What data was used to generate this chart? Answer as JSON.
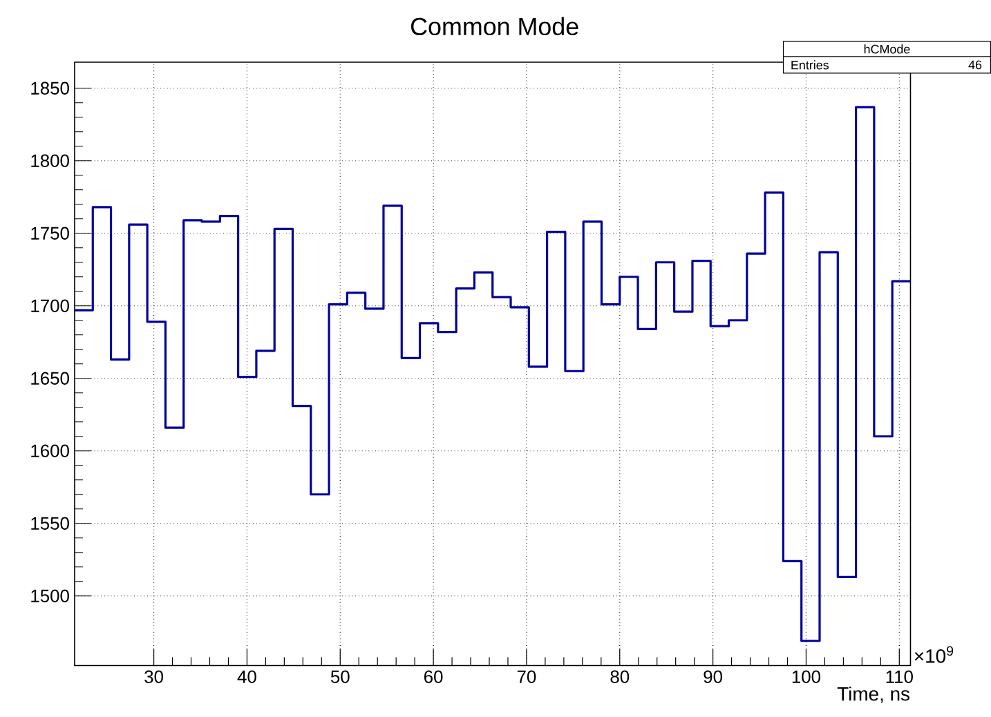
{
  "chart_data": {
    "type": "histogram",
    "title": "Common Mode",
    "xlabel": "Time, ns",
    "bins": [
      21.5,
      23.45,
      25.4,
      27.35,
      29.3,
      31.25,
      33.2,
      35.15,
      37.1,
      39.05,
      41.0,
      42.95,
      44.9,
      46.85,
      48.8,
      50.75,
      52.7,
      54.65,
      56.6,
      58.55,
      60.5,
      62.45,
      64.4,
      66.35,
      68.3,
      70.25,
      72.2,
      74.15,
      76.1,
      78.05,
      80.0,
      81.95,
      83.9,
      85.85,
      87.8,
      89.75,
      91.7,
      93.65,
      95.6,
      97.55,
      99.5,
      101.45,
      103.4,
      105.35,
      107.3,
      109.25,
      111.2
    ],
    "values": [
      1697,
      1768,
      1663,
      1756,
      1689,
      1616,
      1759,
      1758,
      1762,
      1651,
      1669,
      1753,
      1631,
      1570,
      1701,
      1709,
      1698,
      1769,
      1664,
      1688,
      1682,
      1712,
      1723,
      1706,
      1699,
      1658,
      1751,
      1655,
      1758,
      1701,
      1720,
      1684,
      1730,
      1696,
      1731,
      1686,
      1690,
      1736,
      1778,
      1524,
      1469,
      1737,
      1513,
      1837,
      1610,
      1717
    ],
    "color": "#000099",
    "xlim": [
      21.5,
      111.2
    ],
    "ylim": [
      1452,
      1868
    ],
    "xticks": [
      30,
      40,
      50,
      60,
      70,
      80,
      90,
      100,
      110
    ],
    "yticks": [
      1500,
      1550,
      1600,
      1650,
      1700,
      1750,
      1800,
      1850
    ],
    "grid": true,
    "annotations": [
      "hCMode",
      "Entries",
      "46",
      "×10$^{9}$"
    ]
  }
}
